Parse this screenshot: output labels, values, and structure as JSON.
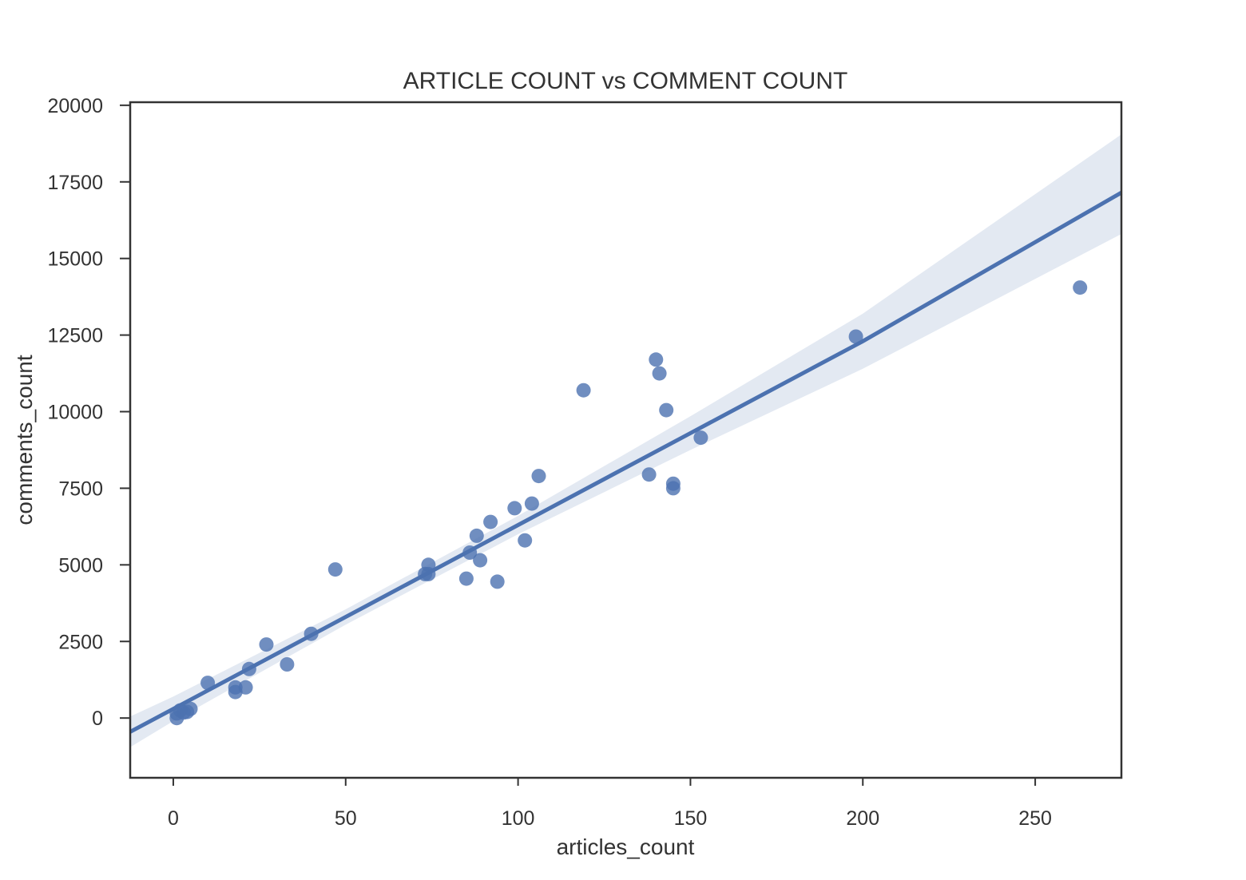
{
  "chart_data": {
    "type": "scatter",
    "title": "ARTICLE COUNT vs COMMENT COUNT",
    "xlabel": "articles_count",
    "ylabel": "comments_count",
    "xlim": [
      -12.5,
      275
    ],
    "ylim": [
      -1950,
      20100
    ],
    "xticks": [
      0,
      50,
      100,
      150,
      200,
      250
    ],
    "xtick_labels": [
      "0",
      "50",
      "100",
      "150",
      "200",
      "250"
    ],
    "yticks": [
      0,
      2500,
      5000,
      7500,
      10000,
      12500,
      15000,
      17500,
      20000
    ],
    "ytick_labels": [
      "0",
      "2500",
      "5000",
      "7500",
      "10000",
      "12500",
      "15000",
      "17500",
      "20000"
    ],
    "grid": false,
    "point_color": "#4C72B0",
    "line_color": "#4C72B0",
    "band_color": "#E3E9F2",
    "points": [
      {
        "x": 1,
        "y": 0
      },
      {
        "x": 1,
        "y": 150
      },
      {
        "x": 2,
        "y": 250
      },
      {
        "x": 3,
        "y": 180
      },
      {
        "x": 4,
        "y": 200
      },
      {
        "x": 5,
        "y": 300
      },
      {
        "x": 10,
        "y": 1150
      },
      {
        "x": 18,
        "y": 850
      },
      {
        "x": 18,
        "y": 1000
      },
      {
        "x": 21,
        "y": 1000
      },
      {
        "x": 22,
        "y": 1600
      },
      {
        "x": 27,
        "y": 2400
      },
      {
        "x": 33,
        "y": 1750
      },
      {
        "x": 40,
        "y": 2750
      },
      {
        "x": 47,
        "y": 4850
      },
      {
        "x": 73,
        "y": 4700
      },
      {
        "x": 74,
        "y": 5000
      },
      {
        "x": 74,
        "y": 4700
      },
      {
        "x": 85,
        "y": 4550
      },
      {
        "x": 86,
        "y": 5400
      },
      {
        "x": 88,
        "y": 5950
      },
      {
        "x": 89,
        "y": 5150
      },
      {
        "x": 92,
        "y": 6400
      },
      {
        "x": 94,
        "y": 4450
      },
      {
        "x": 99,
        "y": 6850
      },
      {
        "x": 102,
        "y": 5800
      },
      {
        "x": 104,
        "y": 7000
      },
      {
        "x": 106,
        "y": 7900
      },
      {
        "x": 119,
        "y": 10700
      },
      {
        "x": 138,
        "y": 7950
      },
      {
        "x": 140,
        "y": 11700
      },
      {
        "x": 141,
        "y": 11250
      },
      {
        "x": 143,
        "y": 10050
      },
      {
        "x": 145,
        "y": 7650
      },
      {
        "x": 145,
        "y": 7500
      },
      {
        "x": 153,
        "y": 9150
      },
      {
        "x": 198,
        "y": 12450
      },
      {
        "x": 263,
        "y": 14050
      }
    ],
    "regression": {
      "x": [
        -12.5,
        0,
        50,
        100,
        150,
        200,
        275
      ],
      "y": [
        -450,
        300,
        3300,
        6300,
        9300,
        12300,
        17150
      ],
      "ci_lower": [
        -950,
        -100,
        3050,
        6000,
        8750,
        11400,
        15800
      ],
      "ci_upper": [
        50,
        700,
        3550,
        6600,
        9850,
        13200,
        19050
      ]
    }
  }
}
